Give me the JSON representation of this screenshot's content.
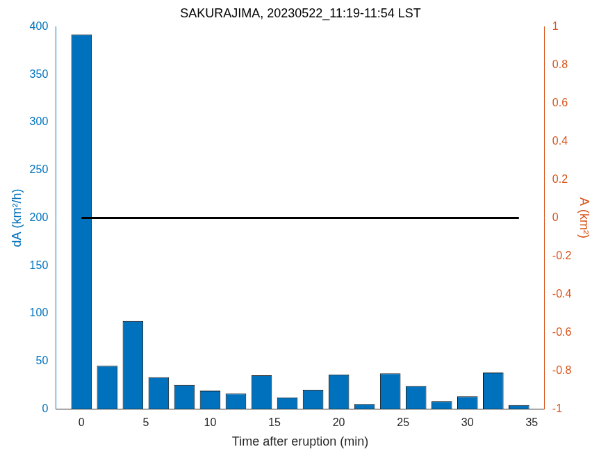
{
  "chart_data": {
    "type": "bar",
    "title": "SAKURAJIMA, 20230522_11:19-11:54 LST",
    "x_label": "Time after eruption (min)",
    "y_label": "dA (km²/h)",
    "y2_label": "A (km²)",
    "x": [
      0,
      2,
      4,
      6,
      8,
      10,
      12,
      14,
      16,
      18,
      20,
      22,
      24,
      26,
      28,
      30,
      32,
      34
    ],
    "series": [
      {
        "type": "bar",
        "color": "#0072bd",
        "values": [
          392,
          45,
          92,
          33,
          25,
          19,
          16,
          35,
          12,
          20,
          36,
          5,
          37,
          24,
          8,
          13,
          38,
          4
        ]
      },
      {
        "type": "line",
        "axis": "y2",
        "color": "#000000",
        "line_style": "solid",
        "values": [
          0,
          0,
          0,
          0,
          0,
          0,
          0,
          0,
          0,
          0,
          0,
          0,
          0,
          0,
          0,
          0,
          0,
          0
        ]
      }
    ],
    "xlim": [
      -2,
      36
    ],
    "xticks": [
      0,
      5,
      10,
      15,
      20,
      25,
      30,
      35
    ],
    "ylim": [
      0,
      400
    ],
    "yticks": [
      0,
      50,
      100,
      150,
      200,
      250,
      300,
      350,
      400
    ],
    "y2lim": [
      -1,
      1
    ],
    "y2ticks": [
      -1,
      -0.8,
      -0.6,
      -0.4,
      -0.2,
      0,
      0.2,
      0.4,
      0.6,
      0.8,
      1
    ],
    "y_color": "#0072bd",
    "y2_color": "#d95319",
    "grid": false
  }
}
